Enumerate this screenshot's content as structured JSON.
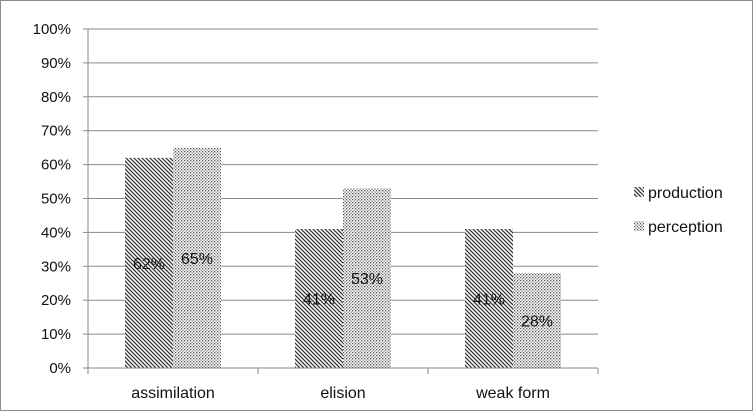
{
  "chart_data": {
    "type": "bar",
    "categories": [
      "assimilation",
      "elision",
      "weak form"
    ],
    "series": [
      {
        "name": "production",
        "values": [
          0.62,
          0.41,
          0.41
        ],
        "labels": [
          "62%",
          "41%",
          "41%"
        ],
        "pattern": "diagonal-hatch"
      },
      {
        "name": "perception",
        "values": [
          0.65,
          0.53,
          0.28
        ],
        "labels": [
          "65%",
          "53%",
          "28%"
        ],
        "pattern": "dots"
      }
    ],
    "ylim": [
      0,
      1
    ],
    "yticks": [
      "0%",
      "10%",
      "20%",
      "30%",
      "40%",
      "50%",
      "60%",
      "70%",
      "80%",
      "90%",
      "100%"
    ],
    "grid": true,
    "legend": "right"
  }
}
